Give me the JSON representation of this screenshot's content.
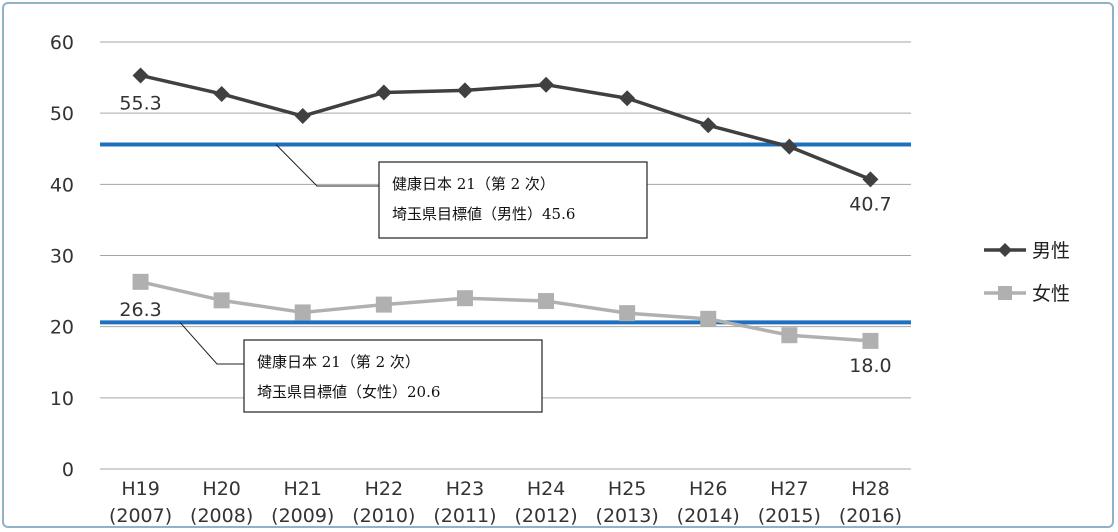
{
  "chart_data": {
    "type": "line",
    "title": "",
    "xlabel": "",
    "ylabel": "",
    "ylim": [
      0,
      60
    ],
    "yticks": [
      0,
      10,
      20,
      30,
      40,
      50,
      60
    ],
    "grid": true,
    "legend_position": "right",
    "categories_top": [
      "H19",
      "H20",
      "H21",
      "H22",
      "H23",
      "H24",
      "H25",
      "H26",
      "H27",
      "H28"
    ],
    "categories_bottom": [
      "(2007)",
      "(2008)",
      "(2009)",
      "(2010)",
      "(2011)",
      "(2012)",
      "(2013)",
      "(2014)",
      "(2015)",
      "(2016)"
    ],
    "series": [
      {
        "name": "男性",
        "marker": "diamond",
        "color": "#404040",
        "values": [
          55.3,
          52.7,
          49.6,
          52.9,
          53.2,
          54.0,
          52.1,
          48.3,
          45.3,
          40.7
        ]
      },
      {
        "name": "女性",
        "marker": "square",
        "color": "#b0b0b0",
        "values": [
          26.3,
          23.7,
          22.0,
          23.1,
          24.0,
          23.6,
          21.9,
          21.1,
          18.8,
          18.0
        ]
      }
    ],
    "data_labels": [
      {
        "series": 0,
        "index": 0,
        "text": "55.3"
      },
      {
        "series": 0,
        "index": 9,
        "text": "40.7"
      },
      {
        "series": 1,
        "index": 0,
        "text": "26.3"
      },
      {
        "series": 1,
        "index": 9,
        "text": "18.0"
      }
    ],
    "reference_lines": [
      {
        "value": 45.6,
        "color": "#1f6fbf",
        "lines": [
          "健康日本 21（第 2 次）",
          "埼玉県目標値（男性）45.6"
        ]
      },
      {
        "value": 20.6,
        "color": "#1f6fbf",
        "lines": [
          "健康日本 21（第 2 次）",
          "埼玉県目標値（女性）20.6"
        ]
      }
    ]
  }
}
